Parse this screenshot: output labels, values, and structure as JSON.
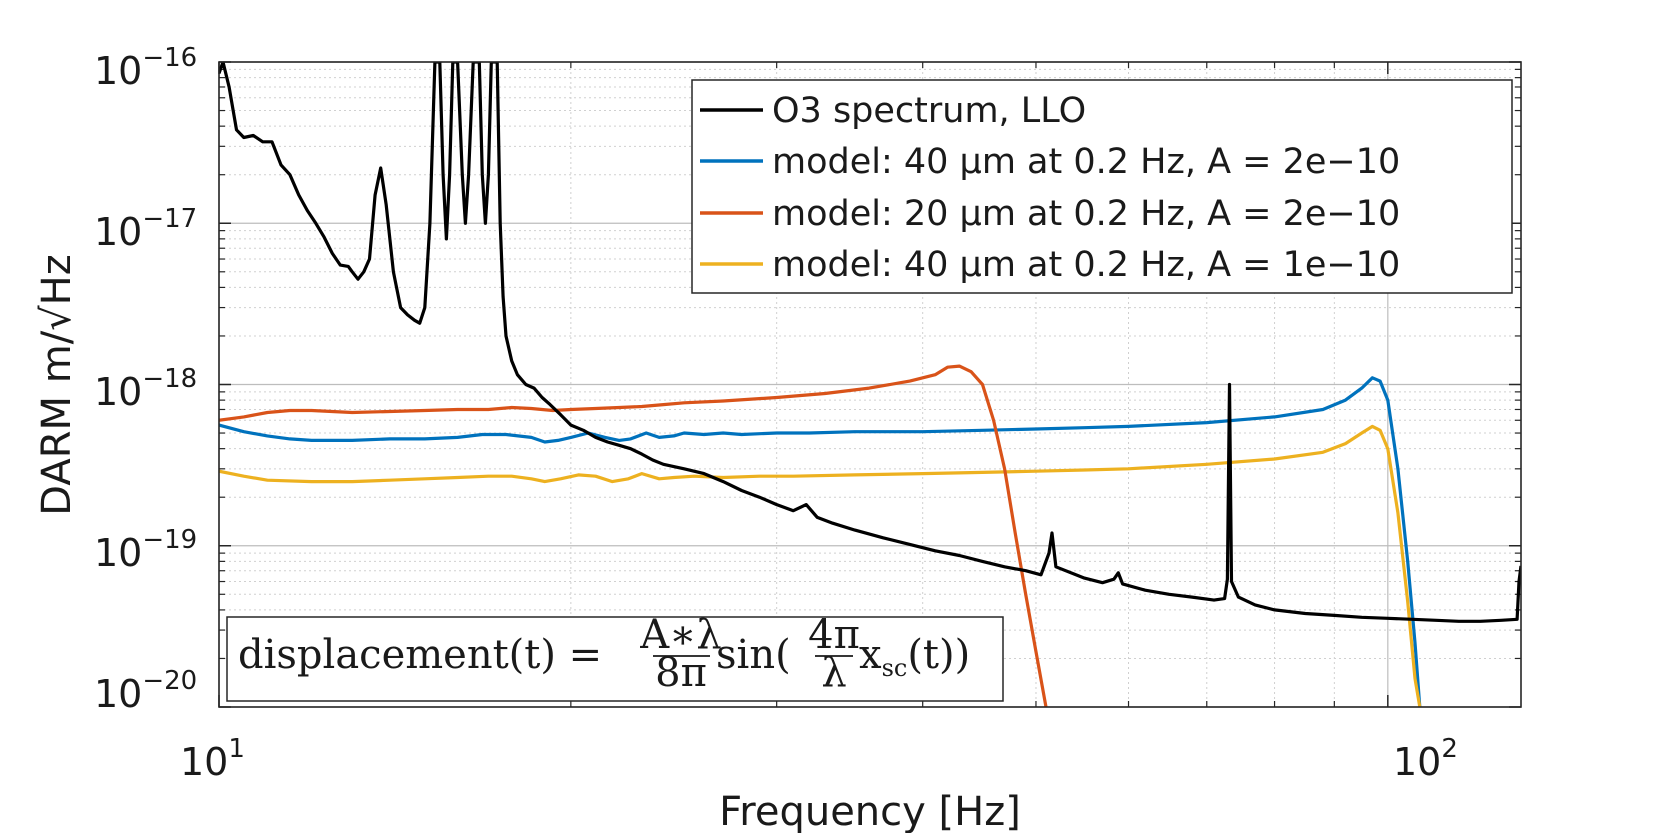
{
  "chart_data": {
    "type": "line",
    "title": "",
    "xlabel": "Frequency [Hz]",
    "ylabel": "DARM m/√Hz",
    "xscale": "log",
    "yscale": "log",
    "xlim": [
      10,
      130
    ],
    "ylim": [
      1e-20,
      1e-16
    ],
    "grid": true,
    "x_ticks": [
      {
        "base": "10",
        "exp": "1",
        "value": 10
      },
      {
        "base": "10",
        "exp": "2",
        "value": 100
      }
    ],
    "y_ticks": [
      {
        "base": "10",
        "exp": "−16",
        "value": 1e-16
      },
      {
        "base": "10",
        "exp": "−17",
        "value": 1e-17
      },
      {
        "base": "10",
        "exp": "−18",
        "value": 1e-18
      },
      {
        "base": "10",
        "exp": "−19",
        "value": 1e-19
      },
      {
        "base": "10",
        "exp": "−20",
        "value": 1e-20
      }
    ],
    "legend_position": "top-right",
    "annotation": {
      "lhs": "displacement(t) =",
      "frac1_num": "A∗λ",
      "frac1_den": "8π",
      "func": "sin(",
      "frac2_num": "4π",
      "frac2_den": "λ",
      "arg": "x",
      "arg_sub": "sc",
      "tail": "(t))"
    },
    "series": [
      {
        "name": "O3 spectrum, LLO",
        "color": "#000000",
        "points": [
          [
            10,
            8.5e-17
          ],
          [
            10.08,
            1e-16
          ],
          [
            10.2,
            7e-17
          ],
          [
            10.35,
            3.8e-17
          ],
          [
            10.5,
            3.4e-17
          ],
          [
            10.7,
            3.5e-17
          ],
          [
            10.9,
            3.2e-17
          ],
          [
            11.1,
            3.2e-17
          ],
          [
            11.3,
            2.3e-17
          ],
          [
            11.5,
            2e-17
          ],
          [
            11.7,
            1.5e-17
          ],
          [
            11.9,
            1.2e-17
          ],
          [
            12.1,
            1e-17
          ],
          [
            12.3,
            8.2e-18
          ],
          [
            12.5,
            6.5e-18
          ],
          [
            12.7,
            5.5e-18
          ],
          [
            12.9,
            5.4e-18
          ],
          [
            13.0,
            5e-18
          ],
          [
            13.15,
            4.5e-18
          ],
          [
            13.3,
            5e-18
          ],
          [
            13.45,
            6e-18
          ],
          [
            13.6,
            1.5e-17
          ],
          [
            13.75,
            2.2e-17
          ],
          [
            13.9,
            1.3e-17
          ],
          [
            14.1,
            5e-18
          ],
          [
            14.3,
            3e-18
          ],
          [
            14.5,
            2.7e-18
          ],
          [
            14.7,
            2.5e-18
          ],
          [
            14.85,
            2.4e-18
          ],
          [
            15.0,
            3e-18
          ],
          [
            15.15,
            1e-17
          ],
          [
            15.3,
            1e-16
          ],
          [
            15.45,
            1e-16
          ],
          [
            15.55,
            2e-17
          ],
          [
            15.65,
            8e-18
          ],
          [
            15.75,
            2e-17
          ],
          [
            15.85,
            1e-16
          ],
          [
            16.0,
            1e-16
          ],
          [
            16.15,
            2e-17
          ],
          [
            16.25,
            1e-17
          ],
          [
            16.35,
            2e-17
          ],
          [
            16.5,
            1e-16
          ],
          [
            16.7,
            1e-16
          ],
          [
            16.8,
            2e-17
          ],
          [
            16.9,
            1e-17
          ],
          [
            17.0,
            2e-17
          ],
          [
            17.1,
            1e-16
          ],
          [
            17.3,
            1e-16
          ],
          [
            17.4,
            1e-17
          ],
          [
            17.5,
            3.5e-18
          ],
          [
            17.6,
            2e-18
          ],
          [
            17.8,
            1.4e-18
          ],
          [
            18.0,
            1.15e-18
          ],
          [
            18.3,
            1e-18
          ],
          [
            18.6,
            9.5e-19
          ],
          [
            18.9,
            8.3e-19
          ],
          [
            19.2,
            7.5e-19
          ],
          [
            19.6,
            6.5e-19
          ],
          [
            20.0,
            5.6e-19
          ],
          [
            20.5,
            5.2e-19
          ],
          [
            21,
            4.7e-19
          ],
          [
            21.5,
            4.4e-19
          ],
          [
            22,
            4.2e-19
          ],
          [
            22.5,
            4e-19
          ],
          [
            23,
            3.7e-19
          ],
          [
            23.5,
            3.4e-19
          ],
          [
            24,
            3.2e-19
          ],
          [
            25,
            3e-19
          ],
          [
            26,
            2.8e-19
          ],
          [
            27,
            2.5e-19
          ],
          [
            28,
            2.2e-19
          ],
          [
            29,
            2e-19
          ],
          [
            30,
            1.8e-19
          ],
          [
            31,
            1.65e-19
          ],
          [
            31.8,
            1.8e-19
          ],
          [
            32.5,
            1.5e-19
          ],
          [
            33.5,
            1.38e-19
          ],
          [
            35,
            1.25e-19
          ],
          [
            37,
            1.12e-19
          ],
          [
            39,
            1.02e-19
          ],
          [
            41,
            9.3e-20
          ],
          [
            43,
            8.7e-20
          ],
          [
            45,
            8e-20
          ],
          [
            47,
            7.4e-20
          ],
          [
            49,
            7e-20
          ],
          [
            50.5,
            6.6e-20
          ],
          [
            51.3,
            9e-20
          ],
          [
            51.6,
            1.2e-19
          ],
          [
            52,
            7.4e-20
          ],
          [
            55,
            6.3e-20
          ],
          [
            57,
            5.9e-20
          ],
          [
            58.3,
            6.2e-20
          ],
          [
            58.8,
            6.8e-20
          ],
          [
            59.3,
            5.8e-20
          ],
          [
            62,
            5.3e-20
          ],
          [
            65,
            5e-20
          ],
          [
            68,
            4.8e-20
          ],
          [
            71,
            4.6e-20
          ],
          [
            72.5,
            4.7e-20
          ],
          [
            72.9,
            6.2e-20
          ],
          [
            73.2,
            1e-18
          ],
          [
            73.5,
            6e-20
          ],
          [
            74.5,
            4.8e-20
          ],
          [
            77,
            4.3e-20
          ],
          [
            80,
            4e-20
          ],
          [
            85,
            3.8e-20
          ],
          [
            90,
            3.7e-20
          ],
          [
            95,
            3.6e-20
          ],
          [
            100,
            3.55e-20
          ],
          [
            105,
            3.5e-20
          ],
          [
            110,
            3.45e-20
          ],
          [
            115,
            3.4e-20
          ],
          [
            120,
            3.4e-20
          ],
          [
            125,
            3.45e-20
          ],
          [
            129,
            3.5e-20
          ],
          [
            129.5,
            6e-20
          ],
          [
            130,
            7.5e-20
          ]
        ]
      },
      {
        "name": "model: 40 μm at 0.2 Hz, A = 2e−10",
        "color": "#0072BD",
        "points": [
          [
            10,
            5.6e-19
          ],
          [
            10.5,
            5.1e-19
          ],
          [
            11,
            4.8e-19
          ],
          [
            11.5,
            4.6e-19
          ],
          [
            12,
            4.5e-19
          ],
          [
            13,
            4.5e-19
          ],
          [
            14,
            4.6e-19
          ],
          [
            15,
            4.6e-19
          ],
          [
            16,
            4.7e-19
          ],
          [
            16.8,
            4.9e-19
          ],
          [
            17.6,
            4.9e-19
          ],
          [
            18.5,
            4.7e-19
          ],
          [
            19,
            4.4e-19
          ],
          [
            19.5,
            4.5e-19
          ],
          [
            20,
            4.7e-19
          ],
          [
            20.7,
            5e-19
          ],
          [
            21.4,
            4.7e-19
          ],
          [
            22,
            4.5e-19
          ],
          [
            22.5,
            4.6e-19
          ],
          [
            23.2,
            5e-19
          ],
          [
            23.8,
            4.7e-19
          ],
          [
            24.5,
            4.8e-19
          ],
          [
            25,
            5e-19
          ],
          [
            26,
            4.9e-19
          ],
          [
            27,
            5e-19
          ],
          [
            28,
            4.9e-19
          ],
          [
            30,
            5e-19
          ],
          [
            32,
            5e-19
          ],
          [
            35,
            5.1e-19
          ],
          [
            40,
            5.1e-19
          ],
          [
            45,
            5.2e-19
          ],
          [
            50,
            5.3e-19
          ],
          [
            55,
            5.4e-19
          ],
          [
            60,
            5.5e-19
          ],
          [
            70,
            5.8e-19
          ],
          [
            80,
            6.3e-19
          ],
          [
            88,
            7e-19
          ],
          [
            92,
            8e-19
          ],
          [
            95,
            9.5e-19
          ],
          [
            97,
            1.1e-18
          ],
          [
            98.5,
            1.05e-18
          ],
          [
            100,
            8e-19
          ],
          [
            102,
            3e-19
          ],
          [
            104,
            8e-20
          ],
          [
            105.5,
            2.5e-20
          ],
          [
            106.5,
            1e-20
          ]
        ]
      },
      {
        "name": "model: 20 μm at 0.2 Hz, A = 2e−10",
        "color": "#D95319",
        "points": [
          [
            10,
            6e-19
          ],
          [
            10.5,
            6.3e-19
          ],
          [
            11,
            6.7e-19
          ],
          [
            11.5,
            6.9e-19
          ],
          [
            12,
            6.9e-19
          ],
          [
            13,
            6.7e-19
          ],
          [
            14,
            6.8e-19
          ],
          [
            15,
            6.9e-19
          ],
          [
            16,
            7e-19
          ],
          [
            17,
            7e-19
          ],
          [
            17.8,
            7.2e-19
          ],
          [
            18.5,
            7.1e-19
          ],
          [
            19.3,
            6.9e-19
          ],
          [
            20,
            7e-19
          ],
          [
            21,
            7.1e-19
          ],
          [
            22,
            7.2e-19
          ],
          [
            23,
            7.3e-19
          ],
          [
            24,
            7.5e-19
          ],
          [
            25,
            7.7e-19
          ],
          [
            27,
            7.9e-19
          ],
          [
            30,
            8.3e-19
          ],
          [
            33,
            8.8e-19
          ],
          [
            36,
            9.5e-19
          ],
          [
            39,
            1.05e-18
          ],
          [
            41,
            1.15e-18
          ],
          [
            42,
            1.28e-18
          ],
          [
            43,
            1.3e-18
          ],
          [
            44,
            1.2e-18
          ],
          [
            45,
            1e-18
          ],
          [
            46,
            6e-19
          ],
          [
            47,
            3e-19
          ],
          [
            48,
            1.2e-19
          ],
          [
            49,
            5e-20
          ],
          [
            50,
            2.2e-20
          ],
          [
            51,
            1e-20
          ]
        ]
      },
      {
        "name": "model: 40 μm at 0.2 Hz, A = 1e−10",
        "color": "#EDB120",
        "points": [
          [
            10,
            2.9e-19
          ],
          [
            10.5,
            2.7e-19
          ],
          [
            11,
            2.55e-19
          ],
          [
            12,
            2.5e-19
          ],
          [
            13,
            2.5e-19
          ],
          [
            14,
            2.55e-19
          ],
          [
            15,
            2.6e-19
          ],
          [
            16,
            2.65e-19
          ],
          [
            17,
            2.7e-19
          ],
          [
            17.8,
            2.7e-19
          ],
          [
            18.5,
            2.6e-19
          ],
          [
            19,
            2.5e-19
          ],
          [
            19.6,
            2.6e-19
          ],
          [
            20.3,
            2.75e-19
          ],
          [
            21,
            2.7e-19
          ],
          [
            21.7,
            2.5e-19
          ],
          [
            22.4,
            2.6e-19
          ],
          [
            23,
            2.8e-19
          ],
          [
            23.8,
            2.6e-19
          ],
          [
            24.5,
            2.65e-19
          ],
          [
            25.5,
            2.7e-19
          ],
          [
            27,
            2.65e-19
          ],
          [
            29,
            2.7e-19
          ],
          [
            31,
            2.7e-19
          ],
          [
            35,
            2.75e-19
          ],
          [
            40,
            2.8e-19
          ],
          [
            45,
            2.85e-19
          ],
          [
            50,
            2.9e-19
          ],
          [
            55,
            2.95e-19
          ],
          [
            60,
            3e-19
          ],
          [
            70,
            3.2e-19
          ],
          [
            80,
            3.45e-19
          ],
          [
            88,
            3.8e-19
          ],
          [
            92,
            4.3e-19
          ],
          [
            95,
            5e-19
          ],
          [
            97,
            5.5e-19
          ],
          [
            98.5,
            5.2e-19
          ],
          [
            100,
            4e-19
          ],
          [
            102,
            1.6e-19
          ],
          [
            104,
            4.5e-20
          ],
          [
            105.5,
            1.5e-20
          ],
          [
            106.5,
            1e-20
          ]
        ]
      }
    ]
  }
}
